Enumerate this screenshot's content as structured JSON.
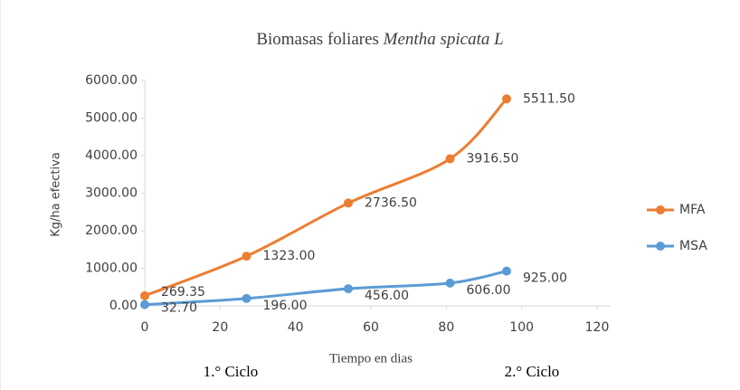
{
  "chart_data": {
    "type": "line",
    "title": "Biomasas foliares",
    "title_species": "Mentha spicata L",
    "x_label": "Tiempo en dias",
    "y_label": "Kg/ha efectiva",
    "annotations": [
      "1.° Ciclo",
      "2.° Ciclo"
    ],
    "x": [
      0,
      27,
      54,
      81,
      96
    ],
    "series": [
      {
        "name": "MFA",
        "color": "#ed7d31",
        "values": [
          269.35,
          1323,
          2736.5,
          3916.5,
          5511.5
        ],
        "value_labels": [
          "269.35",
          "1323.00",
          "2736.50",
          "3916.50",
          "5511.50"
        ]
      },
      {
        "name": "MSA",
        "color": "#5b9bd5",
        "values": [
          32.7,
          196,
          456,
          606,
          925
        ],
        "value_labels": [
          "32.70",
          "196.00",
          "456.00",
          "606.00",
          "925.00"
        ]
      }
    ],
    "xlim": [
      0,
      120
    ],
    "xticks": [
      0,
      20,
      40,
      60,
      80,
      100,
      120
    ],
    "ylim": [
      0,
      6000
    ],
    "yticks": [
      {
        "value": 0,
        "label": "0.00"
      },
      {
        "value": 1000,
        "label": "1000.00"
      },
      {
        "value": 2000,
        "label": "2000.00"
      },
      {
        "value": 3000,
        "label": "3000.00"
      },
      {
        "value": 4000,
        "label": "4000.00"
      },
      {
        "value": 5000,
        "label": "5000.00"
      },
      {
        "value": 6000,
        "label": "6000.00"
      }
    ],
    "grid": false,
    "legend": "right"
  }
}
